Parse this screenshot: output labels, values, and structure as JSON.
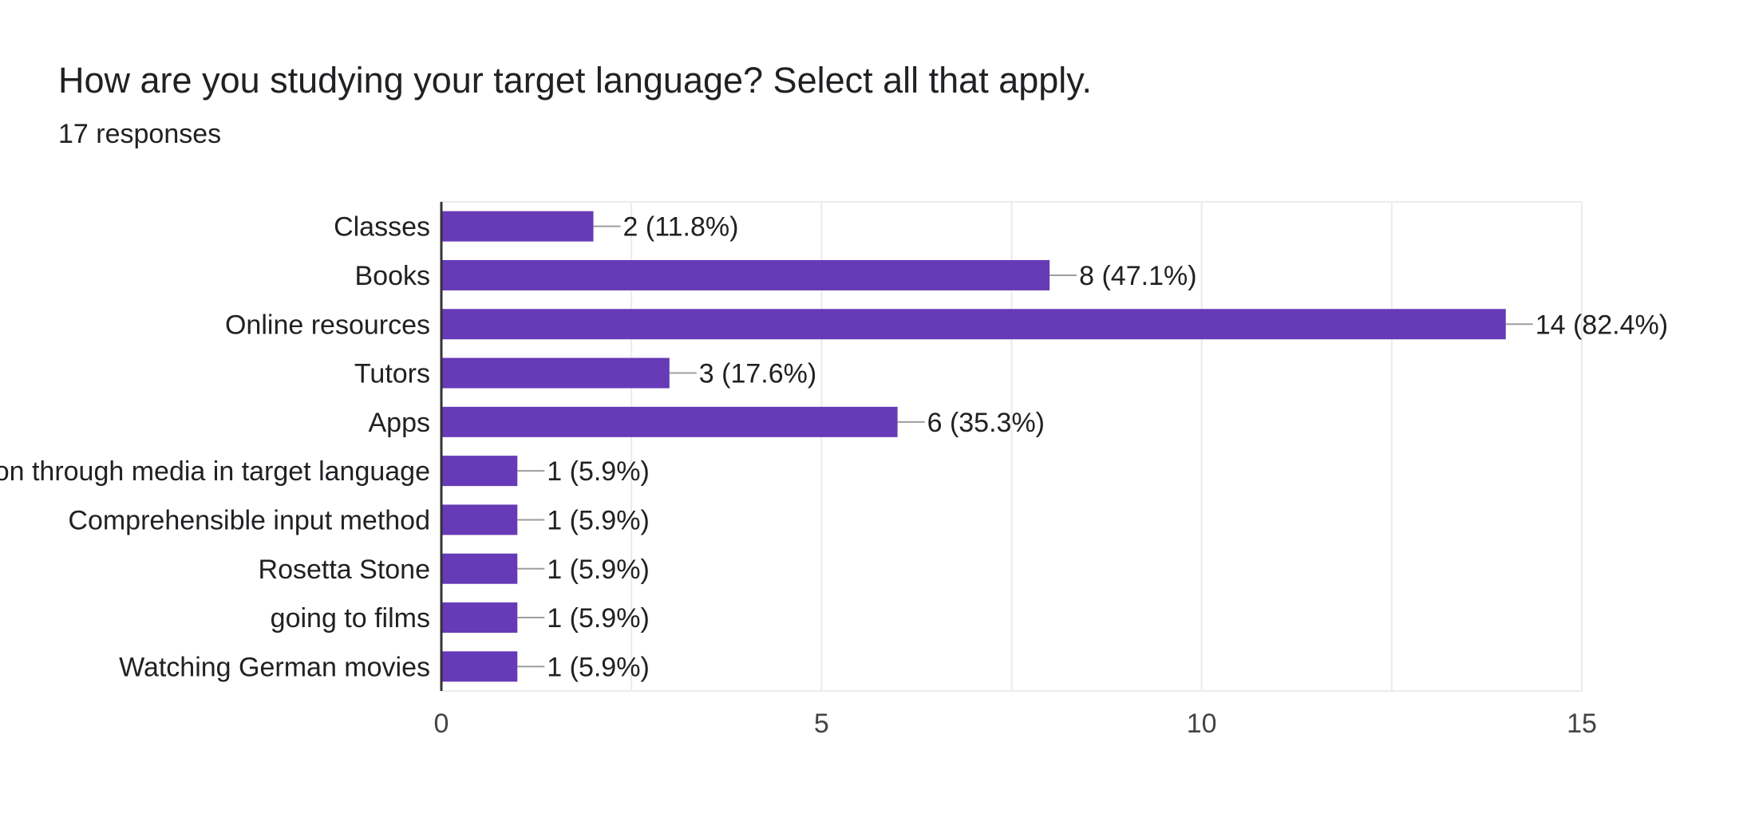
{
  "chart_data": {
    "type": "bar",
    "orientation": "horizontal",
    "title": "How are you studying your target language? Select all that apply.",
    "subtitle": "17 responses",
    "categories": [
      "Classes",
      "Books",
      "Online resources",
      "Tutors",
      "Apps",
      "Immersion through media in target language",
      "Comprehensible input method",
      "Rosetta Stone",
      "going to films",
      "Watching German movies"
    ],
    "values": [
      2,
      8,
      14,
      3,
      6,
      1,
      1,
      1,
      1,
      1
    ],
    "data_labels": [
      "2 (11.8%)",
      "8 (47.1%)",
      "14 (82.4%)",
      "3 (17.6%)",
      "6 (35.3%)",
      "1 (5.9%)",
      "1 (5.9%)",
      "1 (5.9%)",
      "1 (5.9%)",
      "1 (5.9%)"
    ],
    "xlim": [
      0,
      15
    ],
    "xticks": [
      0,
      5,
      10,
      15
    ],
    "grid": true,
    "bar_color": "#673ab7",
    "grid_color": "#ebebeb",
    "axis_color": "#333333",
    "leader_color": "#9e9e9e"
  }
}
